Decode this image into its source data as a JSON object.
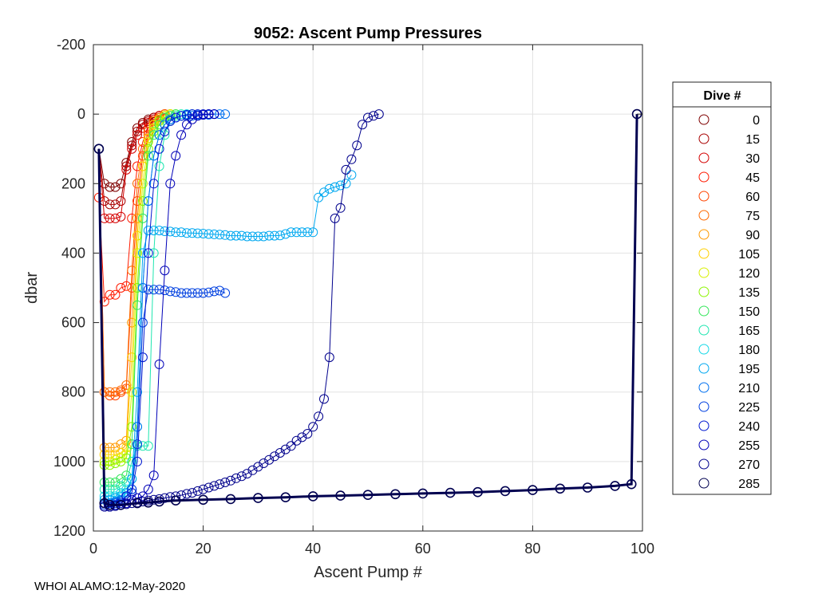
{
  "chart_data": {
    "type": "scatter",
    "title": "9052: Ascent Pump Pressures",
    "xlabel": "Ascent Pump #",
    "ylabel": "dbar",
    "xlim": [
      0,
      100
    ],
    "ylim": [
      -200,
      1200
    ],
    "y_reversed": true,
    "grid": true,
    "x_ticks": [
      0,
      20,
      40,
      60,
      80,
      100
    ],
    "y_ticks": [
      -200,
      0,
      200,
      400,
      600,
      800,
      1000,
      1200
    ],
    "legend": {
      "title": "Dive #",
      "placement": "right",
      "entries": [
        {
          "label": "0",
          "color": "#7f0000"
        },
        {
          "label": "15",
          "color": "#a80000"
        },
        {
          "label": "30",
          "color": "#d40000"
        },
        {
          "label": "45",
          "color": "#ff1a00"
        },
        {
          "label": "60",
          "color": "#ff4400"
        },
        {
          "label": "75",
          "color": "#ff6a00"
        },
        {
          "label": "90",
          "color": "#ff9900"
        },
        {
          "label": "105",
          "color": "#ffd000"
        },
        {
          "label": "120",
          "color": "#d8f000"
        },
        {
          "label": "135",
          "color": "#8cf500"
        },
        {
          "label": "150",
          "color": "#33e65a"
        },
        {
          "label": "165",
          "color": "#1ee6b0"
        },
        {
          "label": "180",
          "color": "#14d8e8"
        },
        {
          "label": "195",
          "color": "#00a8f0"
        },
        {
          "label": "210",
          "color": "#0070f0"
        },
        {
          "label": "225",
          "color": "#0040e0"
        },
        {
          "label": "240",
          "color": "#0018d0"
        },
        {
          "label": "255",
          "color": "#0000b8"
        },
        {
          "label": "270",
          "color": "#00008c"
        },
        {
          "label": "285",
          "color": "#000050"
        }
      ]
    },
    "series": [
      {
        "name": "0",
        "color": "#7f0000",
        "x": [
          1,
          2,
          3,
          4,
          5,
          6,
          7,
          8,
          9,
          10,
          11,
          12,
          13,
          14
        ],
        "y": [
          100,
          200,
          210,
          210,
          200,
          140,
          80,
          40,
          25,
          15,
          10,
          5,
          0,
          0
        ]
      },
      {
        "name": "15",
        "color": "#a80000",
        "x": [
          1,
          2,
          3,
          4,
          5,
          6,
          7,
          8,
          9,
          10,
          11,
          12,
          13
        ],
        "y": [
          100,
          250,
          260,
          260,
          250,
          150,
          90,
          50,
          30,
          20,
          10,
          5,
          0
        ]
      },
      {
        "name": "30",
        "color": "#d40000",
        "x": [
          1,
          2,
          3,
          4,
          5,
          6,
          7,
          8,
          9,
          10,
          11,
          12,
          13
        ],
        "y": [
          100,
          300,
          300,
          300,
          295,
          160,
          100,
          60,
          40,
          25,
          15,
          5,
          0
        ]
      },
      {
        "name": "45",
        "color": "#ff1a00",
        "x": [
          1,
          2,
          3,
          4,
          5,
          6,
          7,
          8,
          9,
          10,
          11,
          12,
          13
        ],
        "y": [
          240,
          540,
          520,
          520,
          500,
          495,
          300,
          150,
          80,
          40,
          20,
          10,
          0
        ]
      },
      {
        "name": "60",
        "color": "#ff4400",
        "x": [
          1,
          2,
          3,
          4,
          5,
          6,
          7,
          8,
          9,
          10,
          11,
          12,
          13
        ],
        "y": [
          100,
          800,
          810,
          810,
          800,
          790,
          500,
          250,
          120,
          60,
          30,
          10,
          0
        ]
      },
      {
        "name": "75",
        "color": "#ff6a00",
        "x": [
          1,
          2,
          3,
          4,
          5,
          6,
          7,
          8,
          9,
          10,
          11,
          12,
          13
        ],
        "y": [
          100,
          800,
          800,
          800,
          795,
          780,
          450,
          200,
          100,
          50,
          20,
          10,
          0
        ]
      },
      {
        "name": "90",
        "color": "#ff9900",
        "x": [
          1,
          2,
          3,
          4,
          5,
          6,
          7,
          8,
          9,
          10,
          11,
          12,
          13,
          14
        ],
        "y": [
          100,
          960,
          960,
          960,
          950,
          940,
          600,
          300,
          150,
          70,
          30,
          15,
          5,
          0
        ]
      },
      {
        "name": "105",
        "color": "#ffd000",
        "x": [
          1,
          2,
          3,
          4,
          5,
          6,
          7,
          8,
          9,
          10,
          11,
          12,
          13,
          14
        ],
        "y": [
          100,
          980,
          980,
          980,
          975,
          960,
          700,
          350,
          150,
          70,
          30,
          15,
          5,
          0
        ]
      },
      {
        "name": "120",
        "color": "#d8f000",
        "x": [
          1,
          2,
          3,
          4,
          5,
          6,
          7,
          8,
          9,
          10,
          11,
          12,
          13,
          14
        ],
        "y": [
          100,
          1000,
          1000,
          995,
          990,
          980,
          800,
          400,
          200,
          80,
          40,
          20,
          5,
          0
        ]
      },
      {
        "name": "135",
        "color": "#8cf500",
        "x": [
          1,
          2,
          3,
          4,
          5,
          6,
          7,
          8,
          9,
          10,
          11,
          12,
          13,
          14,
          15
        ],
        "y": [
          100,
          1010,
          1010,
          1005,
          1000,
          990,
          900,
          500,
          250,
          100,
          50,
          20,
          10,
          5,
          0
        ]
      },
      {
        "name": "150",
        "color": "#33e65a",
        "x": [
          1,
          2,
          3,
          4,
          5,
          6,
          7,
          8,
          9,
          10,
          11,
          12,
          13,
          14,
          15
        ],
        "y": [
          100,
          1060,
          1060,
          1060,
          1050,
          1040,
          950,
          550,
          300,
          120,
          60,
          30,
          10,
          5,
          0
        ]
      },
      {
        "name": "165",
        "color": "#1ee6b0",
        "x": [
          1,
          2,
          3,
          4,
          5,
          6,
          7,
          8,
          9,
          10,
          11,
          12,
          13,
          14,
          15,
          16
        ],
        "y": [
          100,
          1080,
          1080,
          1080,
          1070,
          1060,
          1000,
          955,
          955,
          955,
          400,
          150,
          60,
          20,
          5,
          0
        ]
      },
      {
        "name": "180",
        "color": "#14d8e8",
        "x": [
          1,
          2,
          3,
          4,
          5,
          6,
          7,
          8,
          9,
          10,
          11,
          12,
          13,
          14,
          15,
          16,
          17,
          18
        ],
        "y": [
          100,
          1100,
          1100,
          1100,
          1090,
          1080,
          1050,
          900,
          500,
          250,
          120,
          60,
          30,
          15,
          10,
          5,
          0,
          0
        ]
      },
      {
        "name": "195",
        "color": "#00a8f0",
        "x": [
          1,
          2,
          3,
          4,
          5,
          6,
          7,
          8,
          9,
          10,
          11,
          12,
          13,
          14,
          15,
          16,
          17,
          18,
          19,
          20,
          21,
          22,
          23,
          24,
          25,
          26,
          27,
          28,
          29,
          30,
          31,
          32,
          33,
          34,
          35,
          36,
          37,
          38,
          39,
          40,
          41,
          42,
          43,
          44,
          45,
          46,
          47
        ],
        "y": [
          100,
          1110,
          1110,
          1105,
          1100,
          1090,
          1050,
          800,
          400,
          335,
          335,
          335,
          337,
          338,
          340,
          340,
          342,
          342,
          343,
          344,
          345,
          346,
          347,
          348,
          350,
          350,
          350,
          352,
          352,
          352,
          352,
          350,
          350,
          349,
          345,
          340,
          340,
          340,
          340,
          340,
          240,
          225,
          215,
          210,
          205,
          200,
          175
        ]
      },
      {
        "name": "210",
        "color": "#0070f0",
        "x": [
          1,
          2,
          3,
          4,
          5,
          6,
          7,
          8,
          9,
          10,
          11,
          12,
          13,
          14,
          15,
          16,
          17,
          18,
          19,
          20,
          21,
          22,
          23,
          24
        ],
        "y": [
          100,
          1120,
          1120,
          1115,
          1110,
          1100,
          1080,
          900,
          500,
          250,
          120,
          60,
          30,
          15,
          10,
          5,
          5,
          5,
          3,
          2,
          2,
          0,
          0,
          0
        ]
      },
      {
        "name": "225",
        "color": "#0040e0",
        "x": [
          1,
          2,
          3,
          4,
          5,
          6,
          7,
          8,
          9,
          10,
          11,
          12,
          13,
          14,
          15,
          16,
          17,
          18,
          19,
          20,
          21,
          22,
          23,
          24
        ],
        "y": [
          100,
          1125,
          1125,
          1120,
          1115,
          1100,
          1080,
          950,
          600,
          505,
          505,
          505,
          507,
          510,
          512,
          515,
          515,
          515,
          515,
          515,
          513,
          510,
          508,
          515
        ]
      },
      {
        "name": "240",
        "color": "#0018d0",
        "x": [
          1,
          2,
          3,
          4,
          5,
          6,
          7,
          8,
          9,
          10,
          11,
          12,
          13,
          14,
          15,
          16,
          17,
          18,
          19,
          20,
          21,
          22
        ],
        "y": [
          100,
          1130,
          1130,
          1125,
          1120,
          1100,
          1090,
          1000,
          700,
          400,
          200,
          100,
          50,
          20,
          10,
          5,
          2,
          0,
          0,
          0,
          0,
          0
        ]
      },
      {
        "name": "255",
        "color": "#0000b8",
        "x": [
          1,
          2,
          3,
          4,
          5,
          6,
          7,
          8,
          9,
          10,
          11,
          12,
          13,
          14,
          15,
          16,
          17,
          18,
          19,
          20,
          21,
          22
        ],
        "y": [
          100,
          1130,
          1130,
          1128,
          1125,
          1120,
          1110,
          1105,
          1100,
          1080,
          1040,
          720,
          450,
          200,
          120,
          60,
          30,
          15,
          5,
          2,
          0,
          0
        ]
      },
      {
        "name": "270",
        "color": "#00008c",
        "x": [
          1,
          2,
          3,
          4,
          5,
          6,
          7,
          8,
          9,
          10,
          11,
          12,
          13,
          14,
          15,
          16,
          17,
          18,
          19,
          20,
          21,
          22,
          23,
          24,
          25,
          26,
          27,
          28,
          29,
          30,
          31,
          32,
          33,
          34,
          35,
          36,
          37,
          38,
          39,
          40,
          41,
          42,
          43,
          44,
          45,
          46,
          47,
          48,
          49,
          50,
          51,
          52
        ],
        "y": [
          100,
          1130,
          1130,
          1128,
          1125,
          1123,
          1120,
          1118,
          1115,
          1112,
          1110,
          1108,
          1105,
          1102,
          1100,
          1097,
          1093,
          1090,
          1085,
          1080,
          1075,
          1070,
          1065,
          1060,
          1055,
          1048,
          1042,
          1035,
          1025,
          1015,
          1005,
          995,
          985,
          975,
          965,
          955,
          940,
          930,
          920,
          900,
          870,
          820,
          700,
          300,
          270,
          160,
          130,
          90,
          30,
          10,
          5,
          0
        ]
      },
      {
        "name": "285",
        "color": "#000050",
        "x": [
          1,
          2,
          3,
          5,
          8,
          10,
          12,
          15,
          20,
          25,
          30,
          35,
          40,
          45,
          50,
          55,
          60,
          65,
          70,
          75,
          80,
          85,
          90,
          95,
          98,
          99
        ],
        "y": [
          100,
          1120,
          1125,
          1125,
          1120,
          1118,
          1115,
          1112,
          1110,
          1108,
          1105,
          1103,
          1100,
          1098,
          1096,
          1094,
          1092,
          1090,
          1088,
          1085,
          1082,
          1078,
          1075,
          1070,
          1065,
          0
        ]
      }
    ]
  },
  "footer": {
    "text": "WHOI ALAMO:12-May-2020"
  }
}
